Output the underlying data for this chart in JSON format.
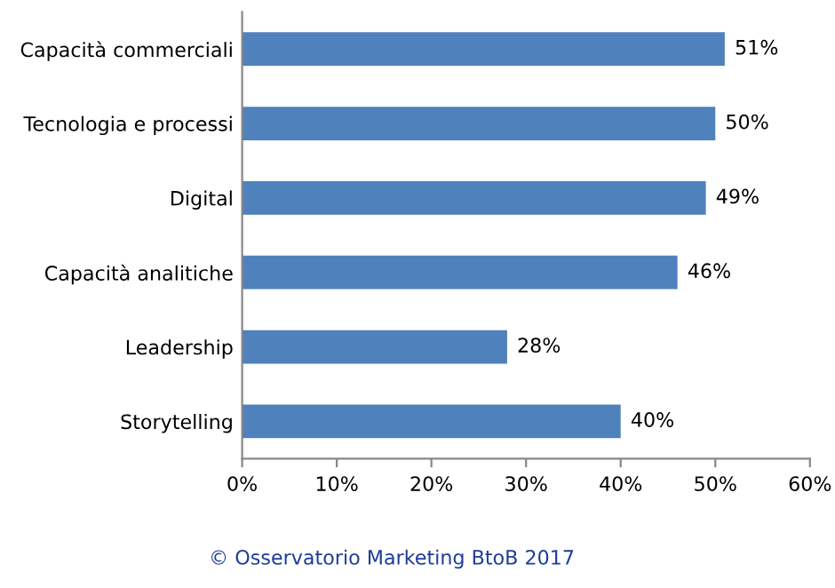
{
  "chart_data": {
    "type": "bar",
    "orientation": "horizontal",
    "categories": [
      "Capacità commerciali",
      "Tecnologia e processi",
      "Digital",
      "Capacità analitiche",
      "Leadership",
      "Storytelling"
    ],
    "values": [
      51,
      50,
      49,
      46,
      28,
      40
    ],
    "value_labels": [
      "51%",
      "50%",
      "49%",
      "46%",
      "28%",
      "40%"
    ],
    "color": "#4f81bd",
    "xlim": [
      0,
      60
    ],
    "xticks": [
      {
        "value": 0,
        "label": "0%"
      },
      {
        "value": 10,
        "label": "10%"
      },
      {
        "value": 20,
        "label": "20%"
      },
      {
        "value": 30,
        "label": "30%"
      },
      {
        "value": 40,
        "label": "40%"
      },
      {
        "value": 50,
        "label": "50%"
      },
      {
        "value": 60,
        "label": "60%"
      }
    ],
    "grid": false,
    "annotations": [
      "© Osservatorio Marketing BtoB 2017"
    ]
  }
}
